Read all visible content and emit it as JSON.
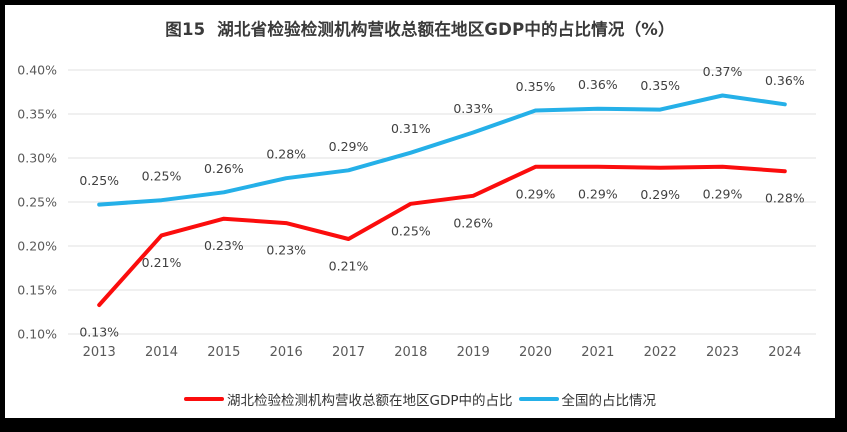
{
  "chart_data": {
    "type": "line",
    "title": "图15  湖北省检验检测机构营收总额在地区GDP中的占比情况（%）",
    "categories": [
      "2013",
      "2014",
      "2015",
      "2016",
      "2017",
      "2018",
      "2019",
      "2020",
      "2021",
      "2022",
      "2023",
      "2024"
    ],
    "series": [
      {
        "name": "湖北检验检测机构营收总额在地区GDP中的占比",
        "color": "#FB0D0D",
        "values": [
          0.133,
          0.212,
          0.231,
          0.226,
          0.208,
          0.248,
          0.257,
          0.29,
          0.29,
          0.289,
          0.29,
          0.285
        ],
        "point_labels": [
          "0.13%",
          "0.21%",
          "0.23%",
          "0.23%",
          "0.21%",
          "0.25%",
          "0.26%",
          "0.29%",
          "0.29%",
          "0.29%",
          "0.29%",
          "0.28%"
        ],
        "label_position": "below"
      },
      {
        "name": "全国的占比情况",
        "color": "#25B0E8",
        "values": [
          0.247,
          0.252,
          0.261,
          0.277,
          0.286,
          0.306,
          0.329,
          0.354,
          0.356,
          0.355,
          0.371,
          0.361
        ],
        "point_labels": [
          "0.25%",
          "0.25%",
          "0.26%",
          "0.28%",
          "0.29%",
          "0.31%",
          "0.33%",
          "0.35%",
          "0.36%",
          "0.35%",
          "0.37%",
          "0.36%"
        ],
        "label_position": "above"
      }
    ],
    "ylim": [
      0.1,
      0.4
    ],
    "y_ticks": [
      "0.10%",
      "0.15%",
      "0.20%",
      "0.25%",
      "0.30%",
      "0.35%",
      "0.40%"
    ],
    "xlabel": "",
    "ylabel": "",
    "grid": true,
    "legend_position": "bottom"
  },
  "colors": {
    "grid": "#E2E2E2",
    "axis_text": "#595959",
    "label_text": "#404040",
    "title_text": "#3A3A3A",
    "surface": "#FFFFFF",
    "frame": "#000000"
  }
}
